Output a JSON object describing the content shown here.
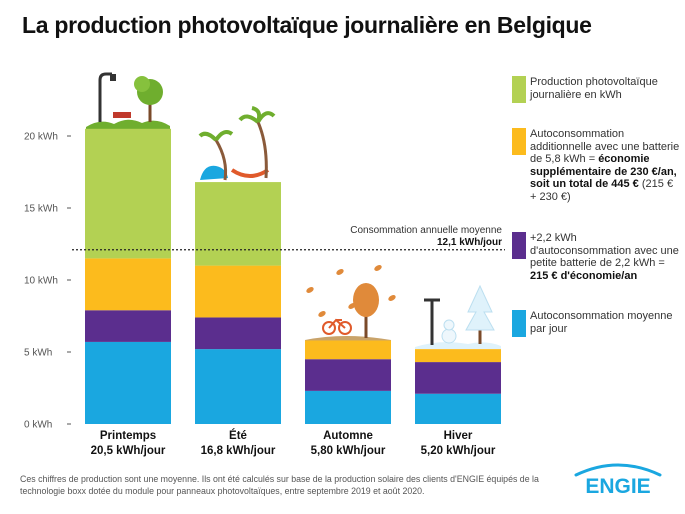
{
  "title": "La production photovoltaïque journalière en Belgique",
  "colors": {
    "production": "#b3d153",
    "battery_large": "#fcbb1d",
    "battery_small": "#5b2e8e",
    "self_consumption": "#1aa7e0"
  },
  "reference": {
    "label": "Consommation annuelle moyenne",
    "value_text": "12,1 kWh/jour",
    "value": 12.1
  },
  "legend": {
    "production": "Production photovoltaïque journalière en kWh",
    "battery_large_plain": "Autoconsommation additionnelle avec une batterie de 5,8 kWh = ",
    "battery_large_bold": "économie supplémentaire de 230 €/an, soit un total de 445 €",
    "battery_large_tail": " (215 € + 230 €)",
    "battery_small_plain": "+2,2 kWh d'autoconsommation avec une petite batterie de 2,2 kWh = ",
    "battery_small_bold": "215 € d'économie/an",
    "self_consumption": "Autoconsommation moyenne par jour"
  },
  "chart_data": {
    "type": "bar",
    "stacked": true,
    "categories": [
      "Printemps",
      "Été",
      "Automne",
      "Hiver"
    ],
    "totals_text": [
      "20,5 kWh/jour",
      "16,8 kWh/jour",
      "5,80 kWh/jour",
      "5,20 kWh/jour"
    ],
    "totals": [
      20.5,
      16.8,
      5.8,
      5.2
    ],
    "series": [
      {
        "name": "Autoconsommation moyenne par jour",
        "values": [
          5.7,
          5.2,
          2.3,
          2.1
        ]
      },
      {
        "name": "+2,2 kWh d'autoconsommation avec une petite batterie de 2,2 kWh",
        "values": [
          2.2,
          2.2,
          2.2,
          2.2
        ]
      },
      {
        "name": "Autoconsommation additionnelle avec une batterie de 5,8 kWh",
        "values": [
          3.6,
          3.6,
          1.3,
          0.9
        ]
      },
      {
        "name": "Production photovoltaïque journalière en kWh",
        "values": [
          9.0,
          5.8,
          0,
          0
        ]
      }
    ],
    "y_ticks": [
      "0 kWh",
      "5 kWh",
      "10 kWh",
      "15 kWh",
      "20 kWh"
    ],
    "y_tick_values": [
      0,
      5,
      10,
      15,
      20
    ],
    "ylim": [
      0,
      25
    ],
    "grid": false
  },
  "footer": "Ces chiffres de production sont une moyenne. Ils ont été calculés sur base de la production solaire des clients d'ENGIE équipés de la technologie boxx dotée du module pour panneaux photovoltaïques, entre septembre 2019 et août 2020.",
  "logo_text": "ENGIE",
  "logo_color": "#1aa7e0"
}
